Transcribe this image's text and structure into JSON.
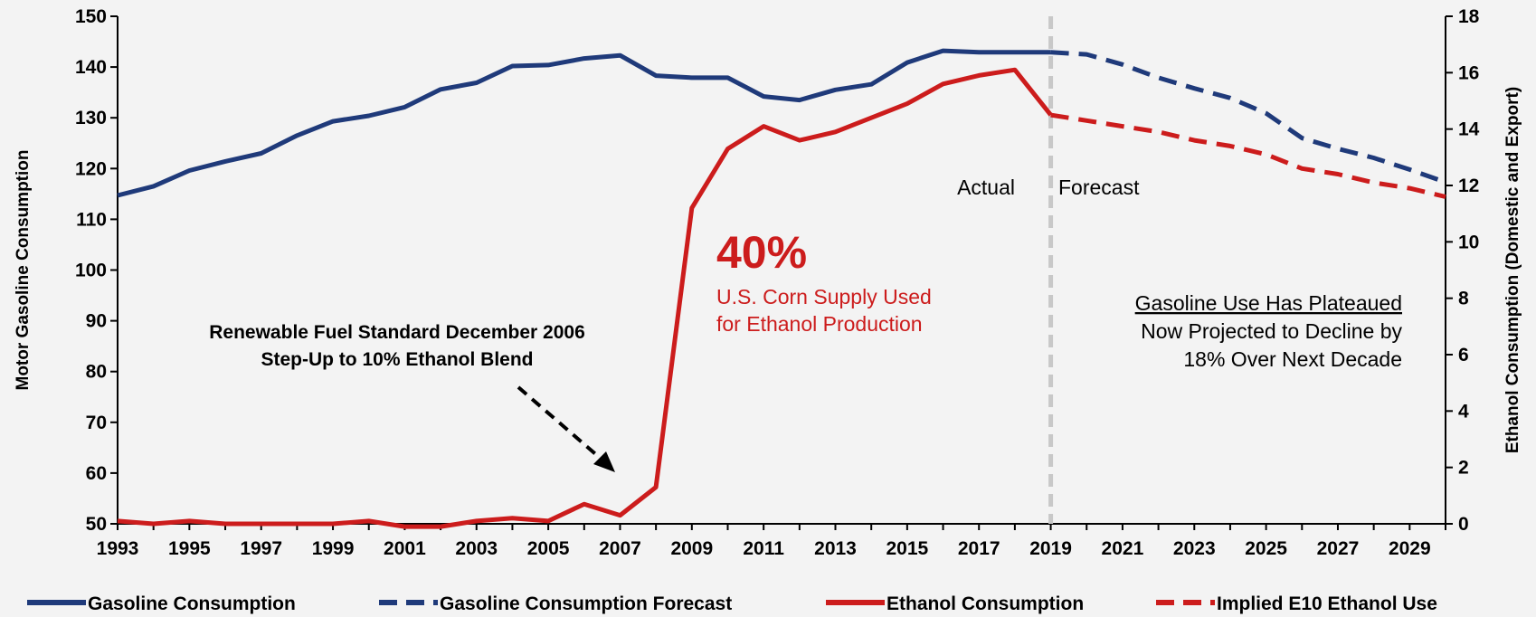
{
  "chart_data": {
    "type": "line",
    "x": [
      1993,
      1994,
      1995,
      1996,
      1997,
      1998,
      1999,
      2000,
      2001,
      2002,
      2003,
      2004,
      2005,
      2006,
      2007,
      2008,
      2009,
      2010,
      2011,
      2012,
      2013,
      2014,
      2015,
      2016,
      2017,
      2018,
      2019,
      2020,
      2021,
      2022,
      2023,
      2024,
      2025,
      2026,
      2027,
      2028,
      2029,
      2030
    ],
    "xticks": [
      "1993",
      "1995",
      "1997",
      "1999",
      "2001",
      "2003",
      "2005",
      "2007",
      "2009",
      "2011",
      "2013",
      "2015",
      "2017",
      "2019",
      "2021",
      "2023",
      "2025",
      "2027",
      "2029"
    ],
    "y_left": {
      "label": "Motor Gasoline Consumption",
      "lim": [
        50,
        150
      ],
      "ticks": [
        "50",
        "60",
        "70",
        "80",
        "90",
        "100",
        "110",
        "120",
        "130",
        "140",
        "150"
      ]
    },
    "y_right": {
      "label": "Ethanol Consumption (Domestic and Export)",
      "lim": [
        0,
        18
      ],
      "ticks": [
        "0",
        "2",
        "4",
        "6",
        "8",
        "10",
        "12",
        "14",
        "16",
        "18"
      ]
    },
    "series": [
      {
        "name": "Gasoline Consumption",
        "axis": "left",
        "style": "solid",
        "color": "#1f3a7a",
        "x": [
          1993,
          1994,
          1995,
          1996,
          1997,
          1998,
          1999,
          2000,
          2001,
          2002,
          2003,
          2004,
          2005,
          2006,
          2007,
          2008,
          2009,
          2010,
          2011,
          2012,
          2013,
          2014,
          2015,
          2016,
          2017,
          2018,
          2019
        ],
        "values": [
          114.7,
          116.5,
          119.6,
          121.4,
          123.0,
          126.5,
          129.3,
          130.4,
          132.1,
          135.6,
          136.9,
          140.2,
          140.4,
          141.7,
          142.3,
          138.3,
          137.9,
          137.9,
          134.2,
          133.5,
          135.5,
          136.6,
          140.9,
          143.2,
          142.9,
          142.9,
          142.9
        ]
      },
      {
        "name": "Gasoline Consumption Forecast",
        "axis": "left",
        "style": "dashed",
        "color": "#1f3a7a",
        "x": [
          2019,
          2020,
          2021,
          2022,
          2023,
          2024,
          2025,
          2026,
          2027,
          2028,
          2029,
          2030
        ],
        "values": [
          142.9,
          142.5,
          140.5,
          137.9,
          135.8,
          133.9,
          130.9,
          126.0,
          123.9,
          122.1,
          119.8,
          117.3
        ]
      },
      {
        "name": "Ethanol Consumption",
        "axis": "right",
        "style": "solid",
        "color": "#cc1c1c",
        "x": [
          1993,
          1994,
          1995,
          1996,
          1997,
          1998,
          1999,
          2000,
          2001,
          2002,
          2003,
          2004,
          2005,
          2006,
          2007,
          2008,
          2009,
          2010,
          2011,
          2012,
          2013,
          2014,
          2015,
          2016,
          2017,
          2018,
          2019
        ],
        "values": [
          0.1,
          0.0,
          0.1,
          0.0,
          0.0,
          0.0,
          0.0,
          0.1,
          -0.1,
          -0.1,
          0.1,
          0.2,
          0.1,
          0.7,
          0.3,
          1.3,
          11.2,
          13.3,
          14.1,
          13.6,
          13.9,
          14.4,
          14.9,
          15.6,
          15.9,
          16.1,
          14.5
        ]
      },
      {
        "name": "Implied E10 Ethanol Use",
        "axis": "right",
        "style": "dashed",
        "color": "#cc1c1c",
        "x": [
          2019,
          2020,
          2021,
          2022,
          2023,
          2024,
          2025,
          2026,
          2027,
          2028,
          2029,
          2030
        ],
        "values": [
          14.5,
          14.3,
          14.1,
          13.9,
          13.6,
          13.4,
          13.1,
          12.6,
          12.4,
          12.1,
          11.9,
          11.6
        ]
      }
    ],
    "annotations": {
      "big_pct": "40%",
      "corn_line1": "U.S. Corn Supply Used",
      "corn_line2": "for Ethanol Production",
      "rfs_line1": "Renewable Fuel Standard December 2006",
      "rfs_line2": "Step-Up to 10% Ethanol Blend",
      "actual": "Actual",
      "forecast": "Forecast",
      "plateau_line1": "Gasoline Use Has Plateaued",
      "plateau_line2": "Now Projected to Decline by",
      "plateau_line3": "18% Over Next Decade"
    },
    "colors": {
      "navy": "#1f3a7a",
      "red": "#cc1c1c",
      "divider": "#c8c8c8"
    },
    "grid": false,
    "legend_position": "bottom"
  }
}
